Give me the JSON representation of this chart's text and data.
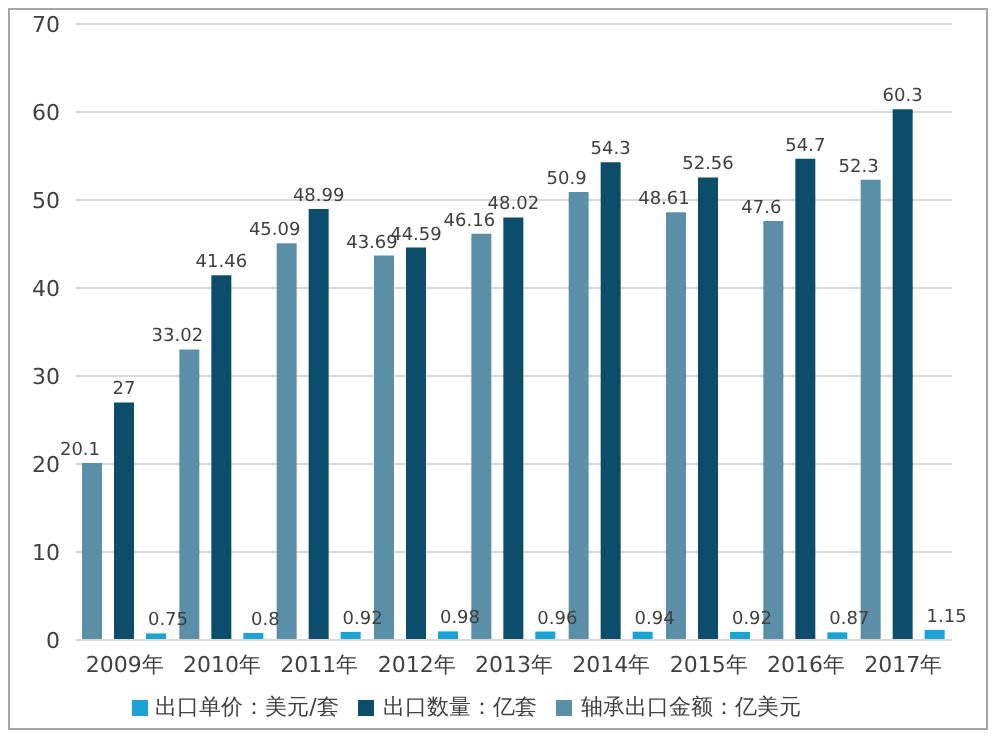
{
  "chart_data": {
    "type": "bar",
    "categories": [
      "2009年",
      "2010年",
      "2011年",
      "2012年",
      "2013年",
      "2014年",
      "2015年",
      "2016年",
      "2017年"
    ],
    "series": [
      {
        "name": "轴承出口金额：亿美元",
        "color": "#5b8fa8",
        "values": [
          20.1,
          33.02,
          45.09,
          43.69,
          46.16,
          50.9,
          48.61,
          47.6,
          52.3
        ]
      },
      {
        "name": "出口数量：亿套",
        "color": "#0b4d6a",
        "values": [
          27,
          41.46,
          48.99,
          44.59,
          48.02,
          54.3,
          52.56,
          54.7,
          60.3
        ]
      },
      {
        "name": "出口单价：美元/套",
        "color": "#1aa3d4",
        "values": [
          0.75,
          0.8,
          0.92,
          0.98,
          0.96,
          0.94,
          0.92,
          0.87,
          1.15
        ]
      }
    ],
    "ylim": [
      0,
      70
    ],
    "yticks": [
      0,
      10,
      20,
      30,
      40,
      50,
      60,
      70
    ],
    "grid": "y",
    "legend": "bottom",
    "data_labels": true
  }
}
